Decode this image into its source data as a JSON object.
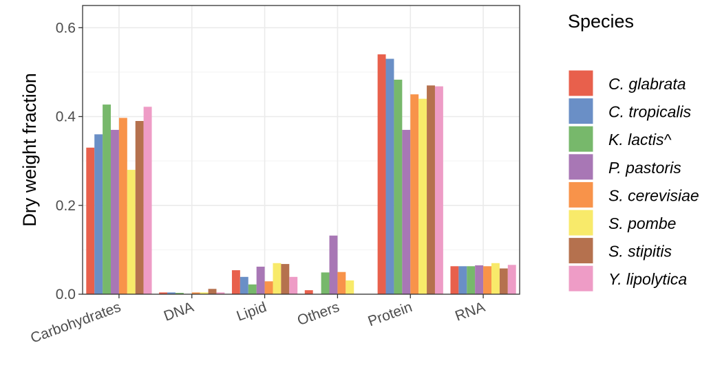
{
  "chart_data": {
    "type": "bar",
    "title": "",
    "xlabel": "",
    "ylabel": "Dry weight fraction",
    "ylim": [
      0,
      0.65
    ],
    "yticks": [
      "0.0",
      "0.2",
      "0.4",
      "0.6"
    ],
    "categories": [
      "Carbohydrates",
      "DNA",
      "Lipid",
      "Others",
      "Protein",
      "RNA"
    ],
    "legend_title": "Species",
    "legend_position": "right",
    "grid": true,
    "series": [
      {
        "name": "C. glabrata",
        "color": "#E8604C",
        "values": [
          0.33,
          0.004,
          0.054,
          0.009,
          0.54,
          0.063
        ]
      },
      {
        "name": "C. tropicalis",
        "color": "#6A8FC6",
        "values": [
          0.36,
          0.004,
          0.039,
          0.0,
          0.53,
          0.063
        ]
      },
      {
        "name": "K. lactis^",
        "color": "#77B86B",
        "values": [
          0.427,
          0.003,
          0.022,
          0.049,
          0.483,
          0.063
        ]
      },
      {
        "name": "P. pastoris",
        "color": "#A877B5",
        "values": [
          0.37,
          0.0,
          0.062,
          0.132,
          0.37,
          0.065
        ]
      },
      {
        "name": "S. cerevisiae",
        "color": "#F8934A",
        "values": [
          0.397,
          0.004,
          0.029,
          0.05,
          0.45,
          0.063
        ]
      },
      {
        "name": "S. pombe",
        "color": "#F8EA6A",
        "values": [
          0.28,
          0.004,
          0.07,
          0.031,
          0.44,
          0.07
        ]
      },
      {
        "name": "S. stipitis",
        "color": "#B5714E",
        "values": [
          0.39,
          0.012,
          0.068,
          0.0,
          0.47,
          0.058
        ]
      },
      {
        "name": "Y. lipolytica",
        "color": "#EE9CC6",
        "values": [
          0.422,
          0.004,
          0.039,
          0.0,
          0.468,
          0.066
        ]
      }
    ]
  }
}
